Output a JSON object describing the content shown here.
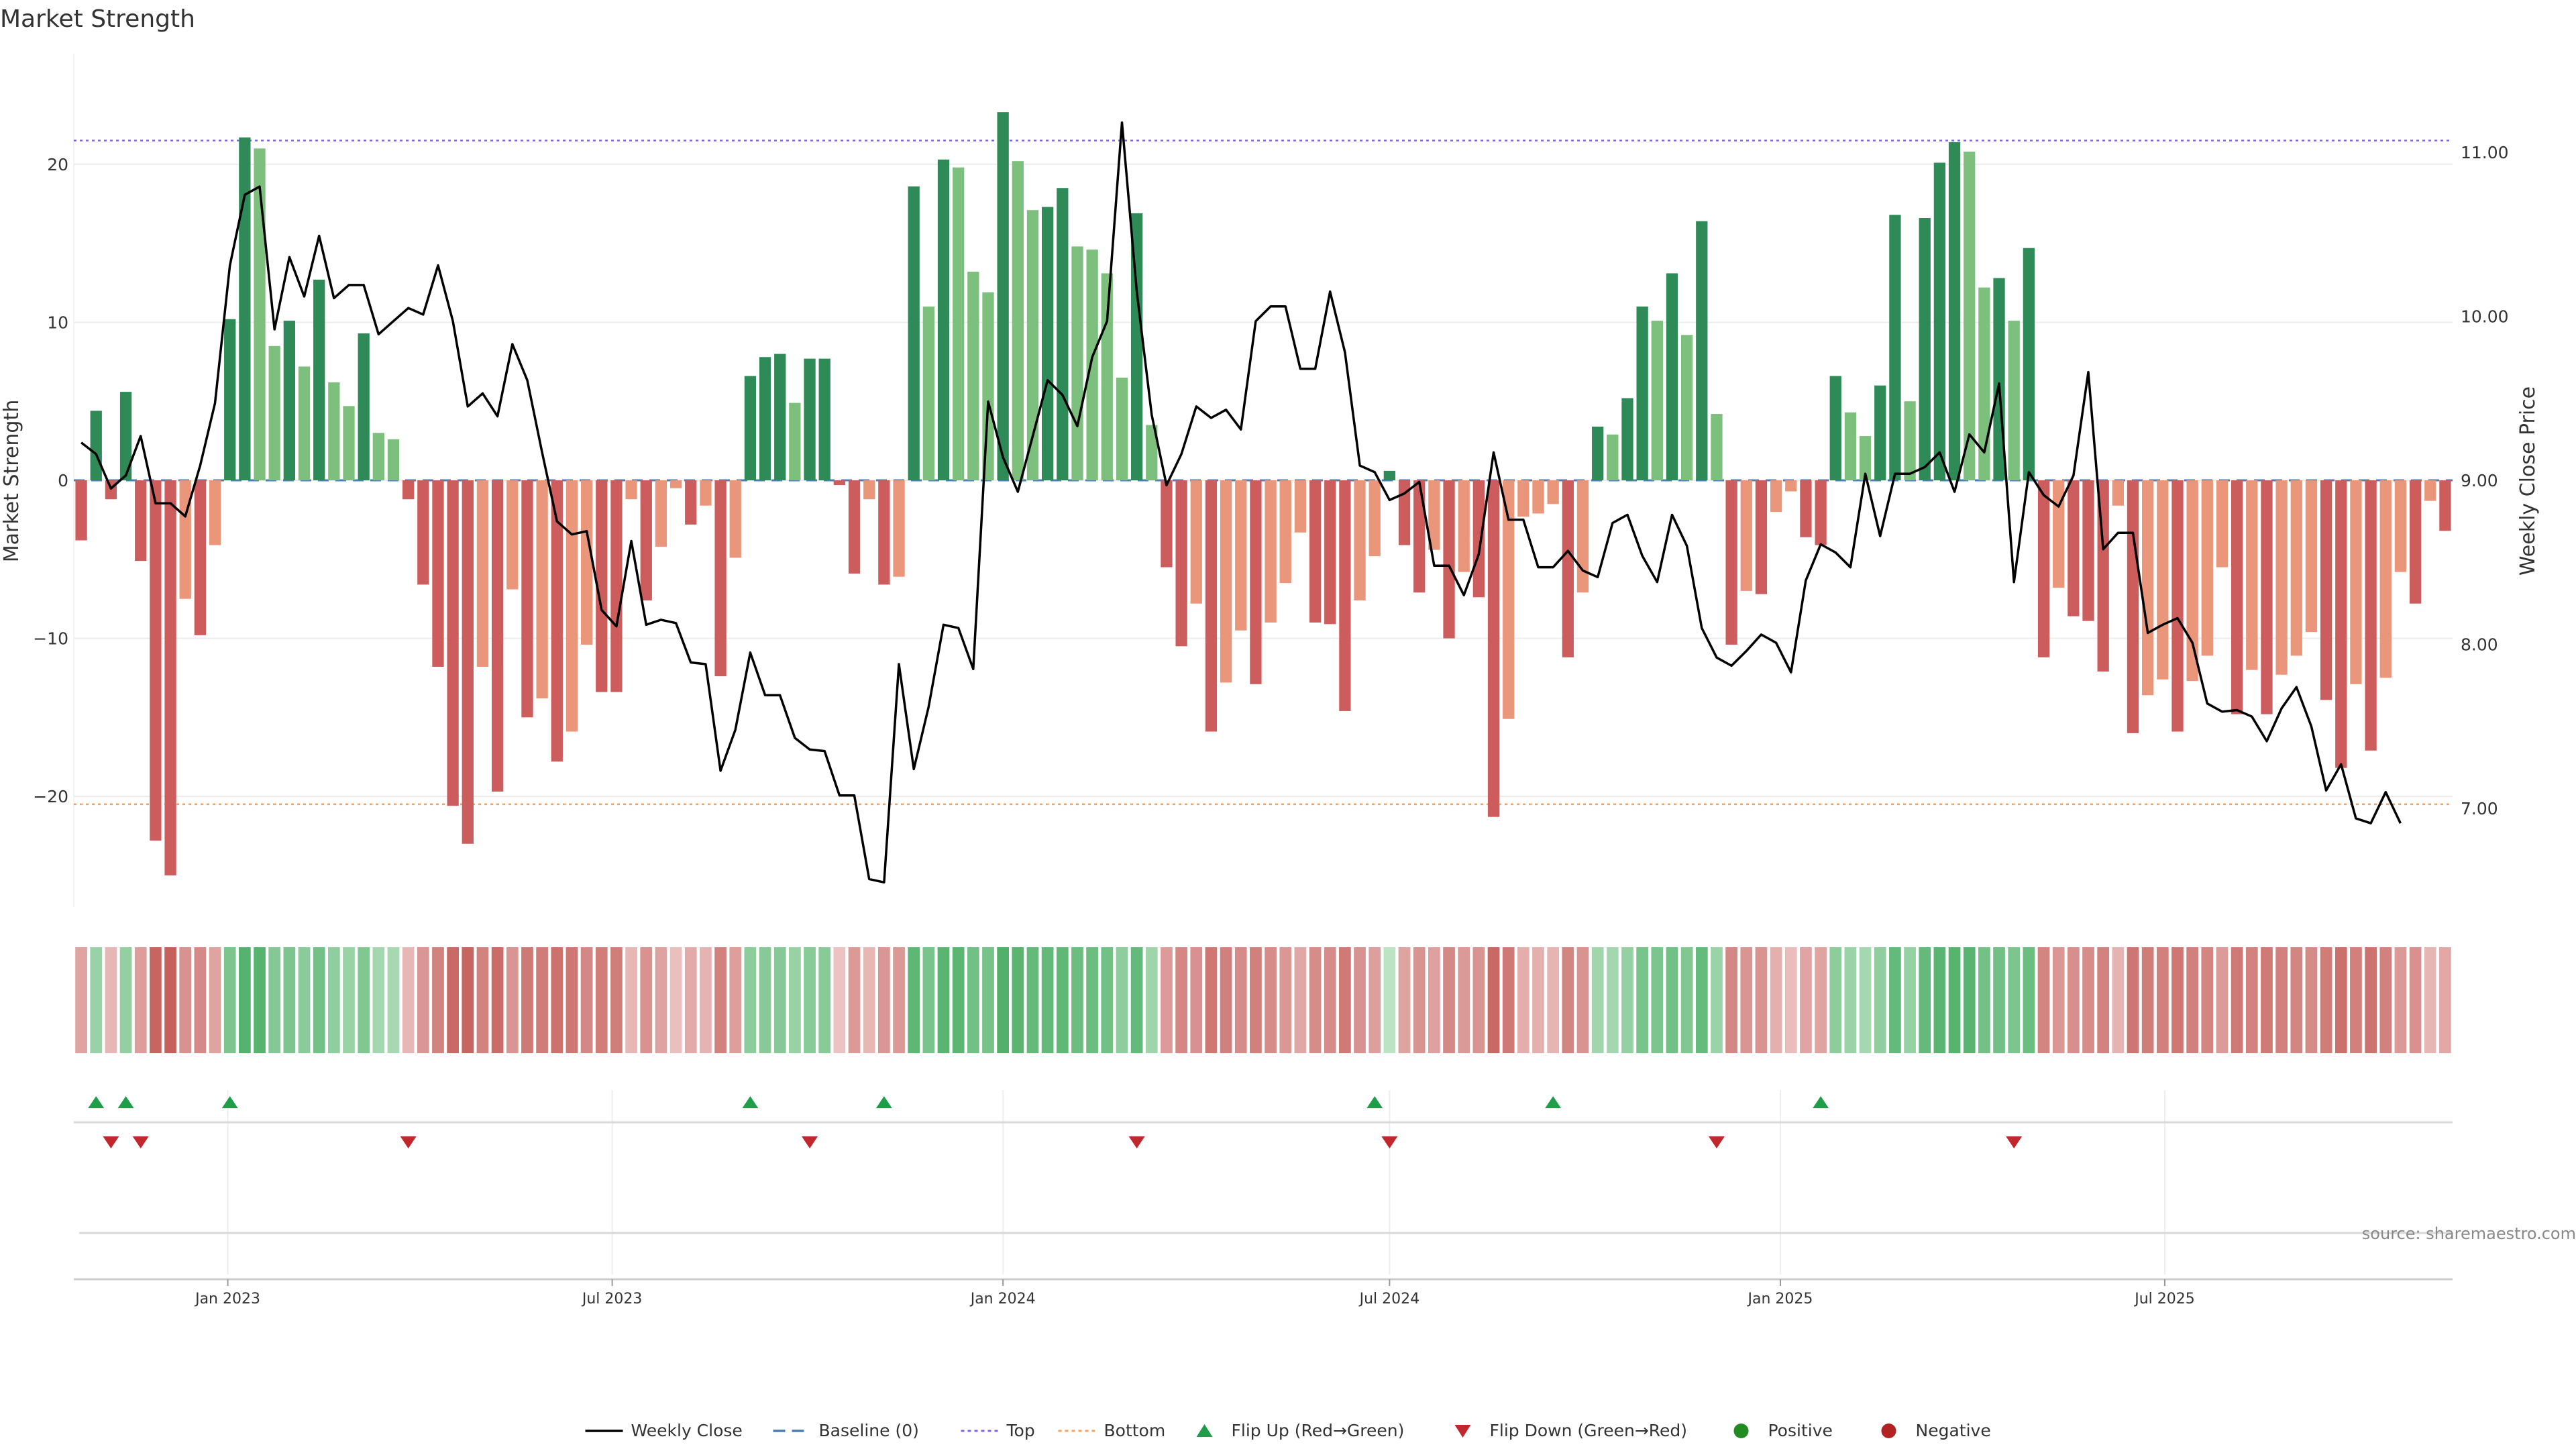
{
  "chart_data": [
    {
      "type": "bar",
      "title": "Market Strength",
      "ylabel": "Market Strength",
      "y2label": "Weekly Close Price",
      "ylim": [
        -27,
        27
      ],
      "y2lim": [
        6.4,
        11.6
      ],
      "yticks": [
        20,
        10,
        0,
        -10,
        -20
      ],
      "y2ticks": [
        "11.00",
        "10.00",
        "9.00",
        "8.00",
        "7.00"
      ],
      "top_line": 21.5,
      "bottom_line": -20.5,
      "x_start": "2022-10-24",
      "x_step_days": 7,
      "dates_note": "Weekly bars, one per week from 2022-10-24 to 2025-10-20",
      "strength": [
        -3.8,
        4.4,
        -1.2,
        5.6,
        -5.1,
        -22.8,
        -25.0,
        -7.5,
        -9.8,
        -4.1,
        10.2,
        21.7,
        21.0,
        8.5,
        10.1,
        7.2,
        12.7,
        6.2,
        4.7,
        9.3,
        3.0,
        2.6,
        -1.2,
        -6.6,
        -11.8,
        -20.6,
        -23.0,
        -11.8,
        -19.7,
        -6.9,
        -15.0,
        -13.8,
        -17.8,
        -15.9,
        -10.4,
        -13.4,
        -13.4,
        -1.2,
        -7.6,
        -4.2,
        -0.5,
        -2.8,
        -1.6,
        -12.4,
        -4.9,
        6.6,
        7.8,
        8.0,
        4.9,
        7.7,
        7.7,
        -0.3,
        -5.9,
        -1.2,
        -6.6,
        -6.1,
        18.6,
        11.0,
        20.3,
        19.8,
        13.2,
        11.9,
        23.3,
        20.2,
        17.1,
        17.3,
        18.5,
        14.8,
        14.6,
        13.1,
        6.5,
        16.9,
        3.5,
        -5.5,
        -10.5,
        -7.8,
        -15.9,
        -12.8,
        -9.5,
        -12.9,
        -9.0,
        -6.5,
        -3.3,
        -9.0,
        -9.1,
        -14.6,
        -7.6,
        -4.8,
        0.6,
        -4.1,
        -7.1,
        -4.4,
        -10.0,
        -5.8,
        -7.4,
        -21.3,
        -15.1,
        -2.3,
        -2.1,
        -1.5,
        -11.2,
        -7.1,
        3.4,
        2.9,
        5.2,
        11.0,
        10.1,
        13.1,
        9.2,
        16.4,
        4.2,
        -10.4,
        -7.0,
        -7.2,
        -2.0,
        -0.7,
        -3.6,
        -4.1,
        6.6,
        4.3,
        2.8,
        6.0,
        16.8,
        5.0,
        16.6,
        20.1,
        21.4,
        20.8,
        12.2,
        12.8,
        10.1,
        14.7,
        -11.2,
        -6.8,
        -8.6,
        -8.9,
        -12.1,
        -1.6,
        -16.0,
        -13.6,
        -12.6,
        -15.9,
        -12.7,
        -11.1,
        -5.5,
        -14.8,
        -12.0,
        -14.8,
        -12.3,
        -11.1,
        -9.6,
        -13.9,
        -18.2,
        -12.9,
        -17.1,
        -12.5,
        -5.8,
        -7.8,
        -1.3,
        -3.2
      ],
      "weekly_close": [
        9.23,
        9.16,
        8.95,
        9.03,
        9.27,
        8.86,
        8.86,
        8.78,
        9.09,
        9.47,
        10.31,
        10.74,
        10.79,
        9.92,
        10.36,
        10.12,
        10.49,
        10.11,
        10.19,
        10.19,
        9.89,
        9.97,
        10.05,
        10.01,
        10.31,
        9.97,
        9.45,
        9.53,
        9.39,
        9.83,
        9.61,
        9.17,
        8.75,
        8.67,
        8.69,
        8.21,
        8.11,
        8.63,
        8.12,
        8.15,
        8.13,
        7.89,
        7.88,
        7.23,
        7.48,
        7.95,
        7.69,
        7.69,
        7.43,
        7.36,
        7.35,
        7.08,
        7.08,
        6.57,
        6.55,
        7.88,
        7.24,
        7.62,
        8.12,
        8.1,
        7.85,
        9.48,
        9.14,
        8.93,
        9.27,
        9.61,
        9.52,
        9.33,
        9.75,
        9.97,
        11.18,
        10.15,
        9.4,
        8.97,
        9.16,
        9.45,
        9.38,
        9.43,
        9.31,
        9.97,
        10.06,
        10.06,
        9.68,
        9.68,
        10.15,
        9.78,
        9.09,
        9.05,
        8.88,
        8.92,
        8.99,
        8.48,
        8.48,
        8.3,
        8.55,
        9.17,
        8.76,
        8.76,
        8.47,
        8.47,
        8.57,
        8.45,
        8.41,
        8.74,
        8.79,
        8.54,
        8.38,
        8.79,
        8.6,
        8.1,
        7.92,
        7.87,
        7.96,
        8.06,
        8.01,
        7.83,
        8.39,
        8.61,
        8.56,
        8.47,
        9.04,
        8.66,
        9.04,
        9.04,
        9.08,
        9.17,
        8.93,
        9.28,
        9.17,
        9.59,
        8.38,
        9.05,
        8.91,
        8.84,
        9.03,
        9.66,
        8.58,
        8.68,
        8.68,
        8.07,
        8.12,
        8.16,
        8.01,
        7.64,
        7.59,
        7.6,
        7.56,
        7.41,
        7.61,
        7.74,
        7.5,
        7.11,
        7.27,
        6.94,
        6.91,
        7.1,
        6.91
      ]
    }
  ],
  "date_ticks": [
    {
      "label": "Jan 2023",
      "date": "2023-01-01"
    },
    {
      "label": "Jul 2023",
      "date": "2023-07-01"
    },
    {
      "label": "Jan 2024",
      "date": "2024-01-01"
    },
    {
      "label": "Jul 2024",
      "date": "2024-07-01"
    },
    {
      "label": "Jan 2025",
      "date": "2025-01-01"
    },
    {
      "label": "Jul 2025",
      "date": "2025-07-01"
    }
  ],
  "flip_up_dates": [
    "2022-10-31",
    "2022-11-14",
    "2023-01-02",
    "2023-09-04",
    "2023-11-06",
    "2024-06-24",
    "2024-09-16",
    "2025-01-20"
  ],
  "flip_down_dates": [
    "2022-11-07",
    "2022-11-21",
    "2023-03-27",
    "2023-10-02",
    "2024-03-04",
    "2024-07-01",
    "2024-12-02",
    "2025-04-21"
  ],
  "colors": {
    "pos_strong": "#2e8b57",
    "pos_light": "#7dc07d",
    "neg_strong": "#cd5c5c",
    "neg_light": "#e9967a",
    "price_line": "#000000",
    "baseline": "#4a7fb5",
    "top_line": "#7b68ee",
    "bottom_line": "#f4a460",
    "flip_up": "#1f9e4a",
    "flip_down": "#c0282d",
    "positive_dot": "#228b22",
    "negative_dot": "#b22222"
  },
  "source": "source: sharemaestro.com",
  "legend": [
    {
      "label": "Weekly Close",
      "kind": "line"
    },
    {
      "label": "Baseline (0)",
      "kind": "baseline"
    },
    {
      "label": "Top",
      "kind": "top"
    },
    {
      "label": "Bottom",
      "kind": "bottom"
    },
    {
      "label": "Flip Up (Red→Green)",
      "kind": "flip-up"
    },
    {
      "label": "Flip Down (Green→Red)",
      "kind": "flip-down"
    },
    {
      "label": "Positive",
      "kind": "positive"
    },
    {
      "label": "Negative",
      "kind": "negative"
    }
  ]
}
